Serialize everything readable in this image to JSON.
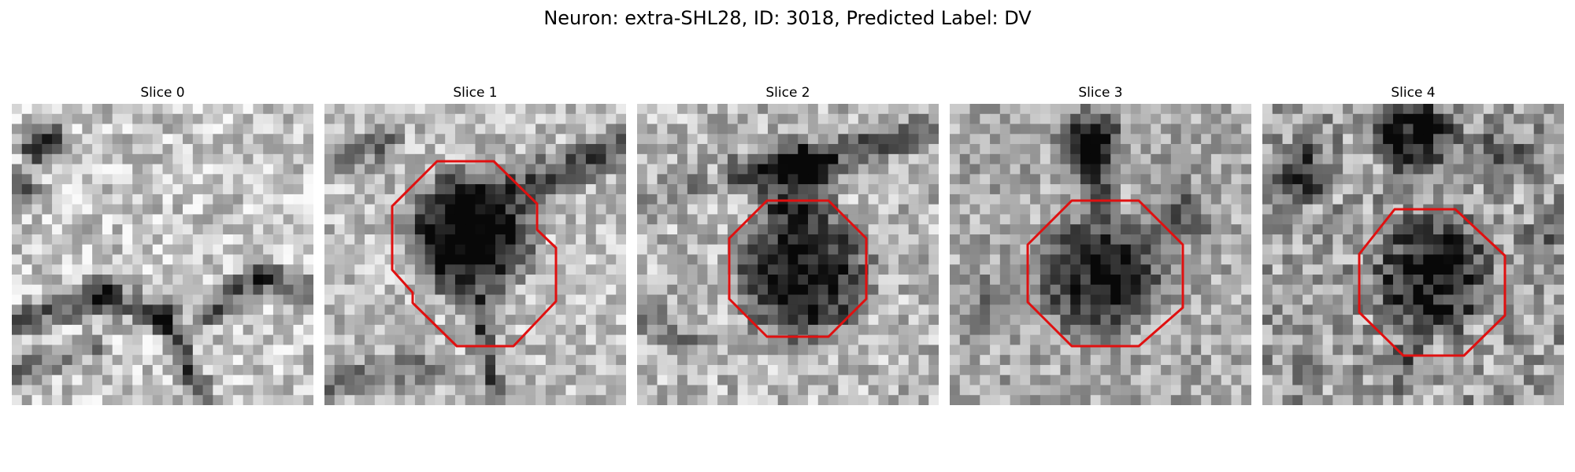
{
  "figure": {
    "title": "Neuron: extra-SHL28, ID: 3018, Predicted Label: DV"
  },
  "overlay_color": "#e01010",
  "slices": [
    {
      "title": "Slice 0",
      "outline": "none",
      "tone": "light"
    },
    {
      "title": "Slice 1",
      "outline": "irregular-octagon",
      "tone": "dark-center"
    },
    {
      "title": "Slice 2",
      "outline": "octagon",
      "tone": "dark-center"
    },
    {
      "title": "Slice 3",
      "outline": "octagon",
      "tone": "medium-center"
    },
    {
      "title": "Slice 4",
      "outline": "octagon",
      "tone": "medium-center"
    }
  ]
}
